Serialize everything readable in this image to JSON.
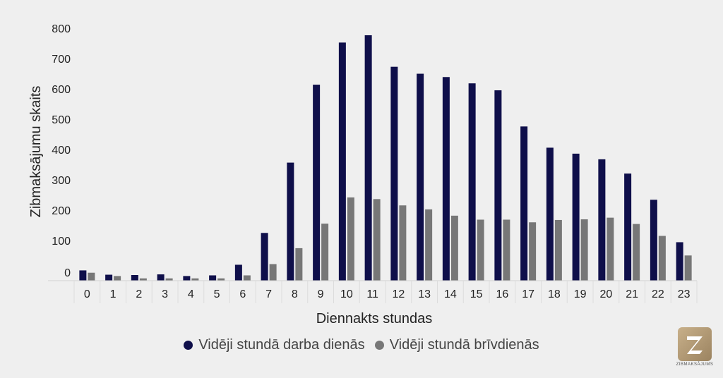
{
  "chart_data": {
    "type": "bar",
    "categories": [
      "0",
      "1",
      "2",
      "3",
      "4",
      "5",
      "6",
      "7",
      "8",
      "9",
      "10",
      "11",
      "12",
      "13",
      "14",
      "15",
      "16",
      "17",
      "18",
      "19",
      "20",
      "21",
      "22",
      "23"
    ],
    "series": [
      {
        "name": "Vidēji stundā darba dienās",
        "color": "#0f0f4a",
        "values": [
          31,
          18,
          17,
          19,
          14,
          16,
          48,
          144,
          356,
          591,
          718,
          740,
          645,
          624,
          614,
          595,
          574,
          465,
          401,
          383,
          366,
          323,
          244,
          116
        ]
      },
      {
        "name": "Vidēji stundā brīvdienās",
        "color": "#777777",
        "values": [
          24,
          14,
          7,
          7,
          7,
          7,
          16,
          50,
          98,
          172,
          251,
          246,
          227,
          215,
          196,
          184,
          184,
          176,
          183,
          185,
          190,
          171,
          135,
          76
        ]
      }
    ],
    "y_ticks": [
      "0",
      "100",
      "200",
      "300",
      "400",
      "500",
      "600",
      "700",
      "800"
    ],
    "xlabel": "Diennakts stundas",
    "ylabel": "Zibmaksājumu skaits",
    "ylim": [
      0,
      800
    ],
    "grid": false,
    "legend_position": "bottom"
  },
  "logo": {
    "text": "ZIBMAKSĀJUMS",
    "letter": "Z"
  }
}
